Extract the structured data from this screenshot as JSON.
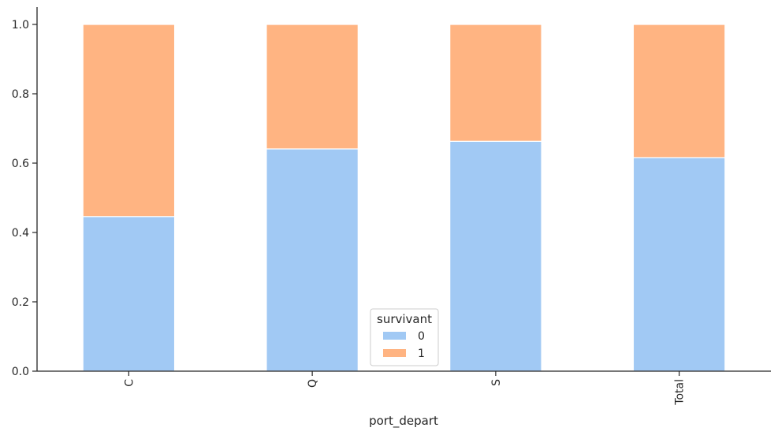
{
  "chart_data": {
    "type": "bar",
    "stacked": true,
    "categories": [
      "C",
      "Q",
      "S",
      "Total"
    ],
    "series": [
      {
        "name": "0",
        "values": [
          0.446,
          0.641,
          0.663,
          0.616
        ],
        "color": "#a1c9f4"
      },
      {
        "name": "1",
        "values": [
          0.554,
          0.359,
          0.337,
          0.384
        ],
        "color": "#ffb482"
      }
    ],
    "xlabel": "port_depart",
    "ylabel": "",
    "ylim": [
      0,
      1.05
    ],
    "yticks": [
      "0.0",
      "0.2",
      "0.4",
      "0.6",
      "0.8",
      "1.0"
    ],
    "legend": {
      "title": "survivant",
      "placement": "bottom-center"
    },
    "grid": false,
    "xtick_rotation": "vertical"
  }
}
